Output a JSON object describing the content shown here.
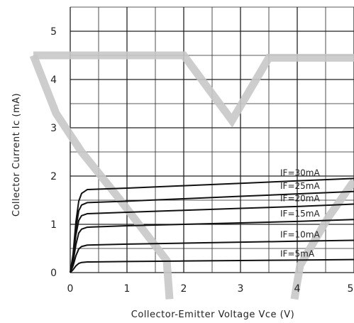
{
  "chart_data": {
    "type": "line",
    "xlabel": "Collector-Emitter Voltage Vce (V)",
    "ylabel": "Collector Current Ic (mA)",
    "xlim": [
      0,
      5
    ],
    "ylim": [
      0,
      5.5
    ],
    "x_ticks": [
      "0",
      "1",
      "2",
      "3",
      "4",
      "5"
    ],
    "y_ticks": [
      "0",
      "1",
      "2",
      "3",
      "4",
      "5"
    ],
    "grid": true,
    "grid_minor_step": 0.5,
    "colors": {
      "curves": "#111111",
      "grid": "#222222",
      "overlay": "#c8c8c8"
    },
    "series": [
      {
        "name": "IF=5mA",
        "points": [
          [
            0,
            0
          ],
          [
            0.05,
            0.06
          ],
          [
            0.1,
            0.14
          ],
          [
            0.15,
            0.19
          ],
          [
            0.2,
            0.21
          ],
          [
            0.3,
            0.22
          ],
          [
            1,
            0.23
          ],
          [
            2,
            0.24
          ],
          [
            3,
            0.25
          ],
          [
            4,
            0.26
          ],
          [
            5,
            0.27
          ]
        ]
      },
      {
        "name": "IF=10mA",
        "points": [
          [
            0,
            0
          ],
          [
            0.05,
            0.14
          ],
          [
            0.1,
            0.35
          ],
          [
            0.15,
            0.49
          ],
          [
            0.2,
            0.54
          ],
          [
            0.3,
            0.57
          ],
          [
            1,
            0.59
          ],
          [
            2,
            0.61
          ],
          [
            3,
            0.63
          ],
          [
            4,
            0.65
          ],
          [
            5,
            0.67
          ]
        ]
      },
      {
        "name": "IF=15mA",
        "points": [
          [
            0,
            0
          ],
          [
            0.05,
            0.22
          ],
          [
            0.1,
            0.58
          ],
          [
            0.15,
            0.82
          ],
          [
            0.2,
            0.9
          ],
          [
            0.3,
            0.94
          ],
          [
            1,
            0.97
          ],
          [
            2,
            1.0
          ],
          [
            3,
            1.03
          ],
          [
            4,
            1.06
          ],
          [
            5,
            1.1
          ]
        ]
      },
      {
        "name": "IF=20mA",
        "points": [
          [
            0,
            0
          ],
          [
            0.05,
            0.29
          ],
          [
            0.1,
            0.78
          ],
          [
            0.15,
            1.08
          ],
          [
            0.2,
            1.18
          ],
          [
            0.3,
            1.22
          ],
          [
            1,
            1.25
          ],
          [
            2,
            1.29
          ],
          [
            3,
            1.33
          ],
          [
            4,
            1.37
          ],
          [
            5,
            1.42
          ]
        ]
      },
      {
        "name": "IF=25mA",
        "points": [
          [
            0,
            0
          ],
          [
            0.05,
            0.34
          ],
          [
            0.1,
            0.92
          ],
          [
            0.15,
            1.28
          ],
          [
            0.2,
            1.4
          ],
          [
            0.3,
            1.45
          ],
          [
            1,
            1.48
          ],
          [
            2,
            1.53
          ],
          [
            3,
            1.58
          ],
          [
            4,
            1.63
          ],
          [
            5,
            1.68
          ]
        ]
      },
      {
        "name": "IF=30mA",
        "points": [
          [
            0,
            0
          ],
          [
            0.05,
            0.38
          ],
          [
            0.1,
            1.05
          ],
          [
            0.15,
            1.48
          ],
          [
            0.2,
            1.64
          ],
          [
            0.3,
            1.72
          ],
          [
            1,
            1.75
          ],
          [
            2,
            1.8
          ],
          [
            3,
            1.85
          ],
          [
            4,
            1.9
          ],
          [
            5,
            1.95
          ]
        ]
      }
    ],
    "overlay_traces": [
      {
        "points": [
          [
            -0.65,
            4.5
          ],
          [
            2.0,
            4.5
          ],
          [
            2.85,
            3.15
          ],
          [
            3.5,
            4.45
          ],
          [
            5.0,
            4.45
          ]
        ]
      },
      {
        "points": [
          [
            -0.65,
            4.5
          ],
          [
            -0.25,
            3.3
          ],
          [
            0.2,
            2.5
          ],
          [
            0.85,
            1.55
          ],
          [
            1.7,
            0.25
          ],
          [
            1.75,
            -0.55
          ]
        ]
      },
      {
        "points": [
          [
            3.95,
            -0.55
          ],
          [
            4.05,
            0.15
          ],
          [
            4.55,
            1.15
          ],
          [
            5.0,
            1.9
          ]
        ]
      }
    ]
  }
}
